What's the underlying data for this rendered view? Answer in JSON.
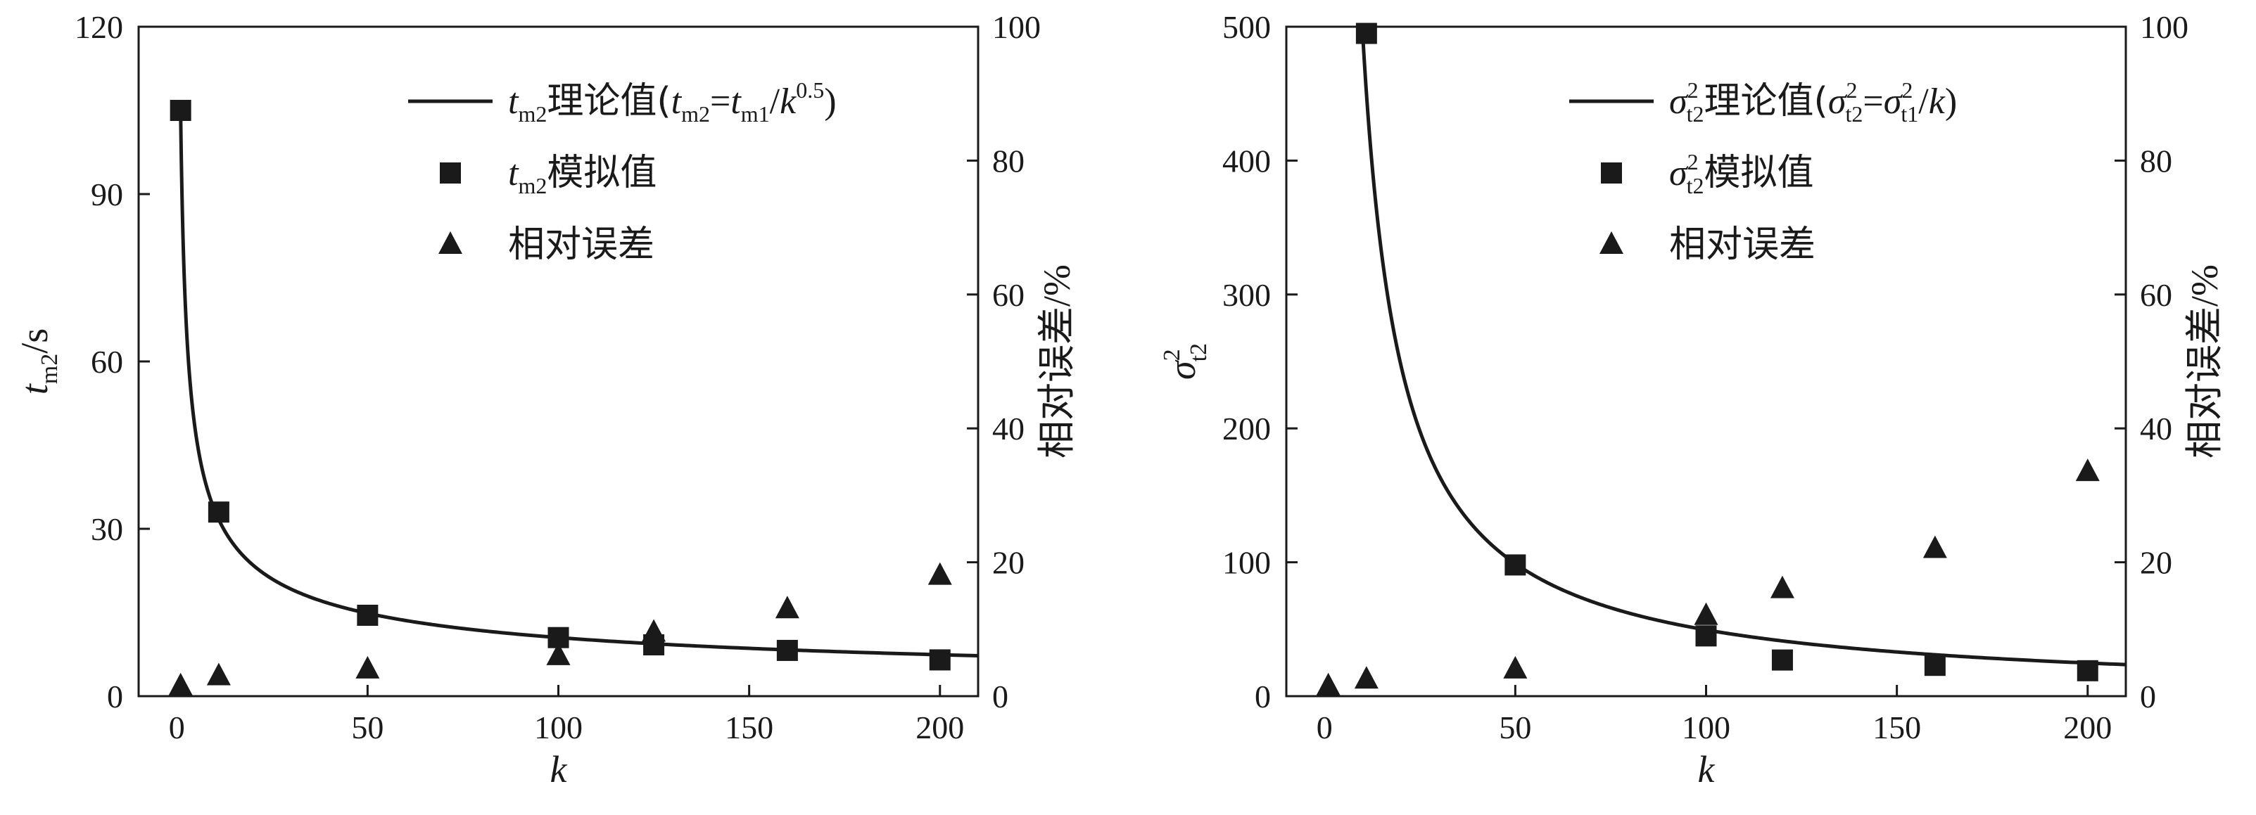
{
  "chart_data": [
    {
      "type": "scatter",
      "x_label": "k",
      "y_label_left": {
        "main": "t",
        "sub": "m2",
        "tail": "/s"
      },
      "y_label_right": "相对误差/%",
      "xlim": [
        -10,
        210
      ],
      "x_ticks": [
        0,
        50,
        100,
        150,
        200
      ],
      "ylim_left": [
        0,
        120
      ],
      "y_ticks_left": [
        0,
        30,
        60,
        90,
        120
      ],
      "ylim_right": [
        0,
        100
      ],
      "y_ticks_right": [
        0,
        20,
        40,
        60,
        80,
        100
      ],
      "legend_position": "top-right",
      "legend": {
        "curve": {
          "main": "t",
          "sub": "m2",
          "text": "理论值(",
          "f_t1": "t",
          "f_s1": "m2",
          "f_eq": "=",
          "f_t2": "t",
          "f_s2": "m1",
          "f_div": "/",
          "f_k": "k",
          "f_exp": "0.5",
          "f_close": ")"
        },
        "squares": {
          "main": "t",
          "sub": "m2",
          "text": "模拟值"
        },
        "triangles": {
          "text": "相对误差"
        }
      },
      "series": [
        {
          "kind": "theory",
          "marker": "line",
          "axis": "left",
          "a": 105,
          "power": 0.5,
          "x_range": [
            1,
            210
          ]
        },
        {
          "kind": "simulated",
          "marker": "square",
          "axis": "left",
          "x": [
            1,
            11,
            50,
            100,
            125,
            160,
            200
          ],
          "y": [
            105,
            33,
            14.5,
            10.5,
            9.2,
            8.2,
            6.5
          ]
        },
        {
          "kind": "relative-error",
          "marker": "triangle",
          "axis": "right",
          "x": [
            1,
            11,
            50,
            100,
            125,
            160,
            200
          ],
          "y": [
            1.5,
            3,
            4,
            6,
            9.5,
            13,
            18
          ]
        }
      ]
    },
    {
      "type": "scatter",
      "x_label": "k",
      "y_label_left": {
        "main": "σ",
        "sup": "2",
        "sub": "t2"
      },
      "y_label_right": "相对误差/%",
      "xlim": [
        -10,
        210
      ],
      "x_ticks": [
        0,
        50,
        100,
        150,
        200
      ],
      "ylim_left": [
        0,
        500
      ],
      "y_ticks_left": [
        0,
        100,
        200,
        300,
        400,
        500
      ],
      "ylim_right": [
        0,
        100
      ],
      "y_ticks_right": [
        0,
        20,
        40,
        60,
        80,
        100
      ],
      "legend_position": "top-right",
      "legend": {
        "curve": {
          "main": "σ",
          "sup": "2",
          "sub": "t2",
          "text": "理论值(",
          "f_t1": "σ",
          "f_p1": "2",
          "f_s1": "t2",
          "f_eq": "=",
          "f_t2": "σ",
          "f_p2": "2",
          "f_s2": "t1",
          "f_div": "/",
          "f_k": "k",
          "f_close": ")"
        },
        "squares": {
          "main": "σ",
          "sup": "2",
          "sub": "t2",
          "text": "模拟值"
        },
        "triangles": {
          "text": "相对误差"
        }
      },
      "series": [
        {
          "kind": "theory",
          "marker": "line",
          "axis": "left",
          "a": 4950,
          "power": 1,
          "x_range": [
            10,
            210
          ]
        },
        {
          "kind": "simulated",
          "marker": "square",
          "axis": "left",
          "x": [
            11,
            50,
            100,
            120,
            160,
            200
          ],
          "y": [
            495,
            98,
            45,
            27,
            23,
            19
          ]
        },
        {
          "kind": "relative-error",
          "marker": "triangle",
          "axis": "right",
          "x": [
            1,
            11,
            50,
            100,
            120,
            160,
            200
          ],
          "y": [
            1.5,
            2.5,
            4,
            12,
            16,
            22,
            33.5
          ]
        }
      ]
    }
  ]
}
